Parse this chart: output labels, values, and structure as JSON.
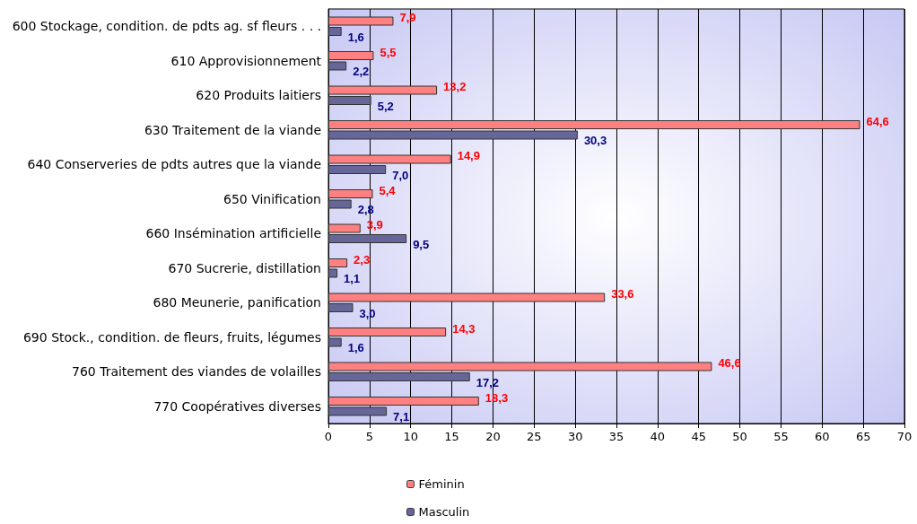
{
  "chart_data": {
    "type": "bar",
    "orientation": "horizontal",
    "categories": [
      "600 Stockage, condition. de pdts ag. sf fleurs . . .",
      "610 Approvisionnement",
      "620 Produits laitiers",
      "630 Traitement de la viande",
      "640 Conserveries de pdts autres que la viande",
      "650 Vinification",
      "660 Insémination artificielle",
      "670 Sucrerie, distillation",
      "680 Meunerie, panification",
      "690 Stock., condition. de fleurs, fruits, légumes",
      "760 Traitement des viandes de volailles",
      "770 Coopératives diverses"
    ],
    "series": [
      {
        "name": "Féminin",
        "color": "#ff8080",
        "values": [
          7.9,
          5.5,
          13.2,
          64.6,
          14.9,
          5.4,
          3.9,
          2.3,
          33.6,
          14.3,
          46.6,
          18.3
        ],
        "value_labels": [
          "7,9",
          "5,5",
          "13,2",
          "64,6",
          "14,9",
          "5,4",
          "3,9",
          "2,3",
          "33,6",
          "14,3",
          "46,6",
          "18,3"
        ]
      },
      {
        "name": "Masculin",
        "color": "#666699",
        "values": [
          1.6,
          2.2,
          5.2,
          30.3,
          7.0,
          2.8,
          9.5,
          1.1,
          3.0,
          1.6,
          17.2,
          7.1
        ],
        "value_labels": [
          "1,6",
          "2,2",
          "5,2",
          "30,3",
          "7,0",
          "2,8",
          "9,5",
          "1,1",
          "3,0",
          "1,6",
          "17,2",
          "7,1"
        ]
      }
    ],
    "xlim": [
      0,
      70
    ],
    "xticks": [
      0,
      5,
      10,
      15,
      20,
      25,
      30,
      35,
      40,
      45,
      50,
      55,
      60,
      65,
      70
    ],
    "grid": "x",
    "legend": "bottom"
  }
}
